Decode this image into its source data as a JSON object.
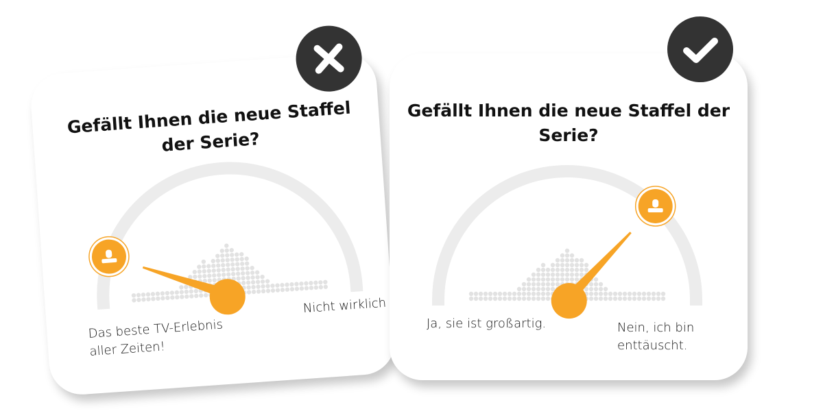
{
  "colors": {
    "accent": "#f7a426",
    "track": "#ececec",
    "dots": "#e2e2e2",
    "badge": "#333333"
  },
  "cards": [
    {
      "verdict": "bad",
      "badge_icon": "x-icon",
      "question": "Gefällt Ihnen die neue Staffel der Serie?",
      "left_label": "Das beste TV-Erlebnis aller Zeiten!",
      "right_label": "Nicht wirklich",
      "gauge_value": 0.12,
      "avatar_icon": "user-icon"
    },
    {
      "verdict": "good",
      "badge_icon": "check-icon",
      "question": "Gefällt Ihnen die neue Staffel der Serie?",
      "left_label": "Ja, sie ist großartig.",
      "right_label": "Nein, ich bin enttäuscht.",
      "gauge_value": 0.74,
      "avatar_icon": "user-icon"
    }
  ]
}
